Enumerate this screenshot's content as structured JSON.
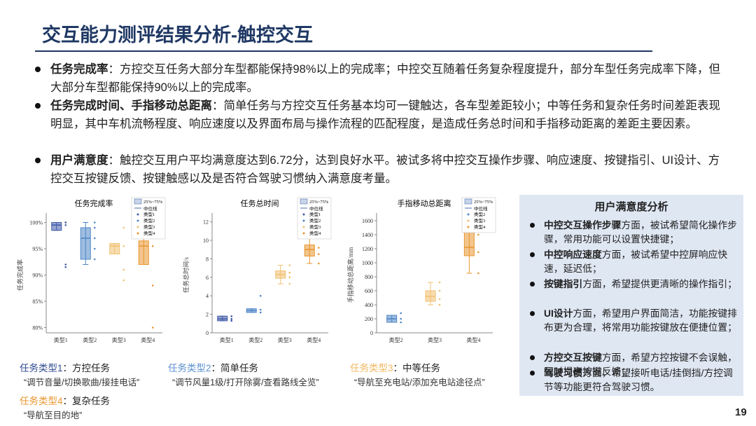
{
  "title": "交互能力测评结果分析-触控交互",
  "bullets": [
    {
      "lead": "任务完成率",
      "text": "：方控交互任务大部分车型都能保持98%以上的完成率；中控交互随着任务复杂程度提升，部分车型任务完成率下降，但大部分车型都能保持90%以上的完成率。"
    },
    {
      "lead": "任务完成时间、手指移动总距离",
      "text": "：简单任务与方控交互任务基本均可一键触达，各车型差距较小；中等任务和复杂任务时间差距表现明显，其中车机流畅程度、响应速度以及界面布局与操作流程的匹配程度，是造成任务总时间和手指移动距离的差距主要因素。"
    },
    {
      "lead": "用户满意度",
      "text": "：触控交互用户平均满意度达到6.72分，达到良好水平。被试多将中控交互操作步骤、响应速度、按键指引、UI设计、方控交互按键反馈、按键触感以及是否符合驾驶习惯纳入满意度考量。"
    }
  ],
  "chart_data": [
    {
      "type": "box",
      "title": "任务完成率",
      "ylabel": "任务完成率",
      "legend_labels": [
        "25%~75%",
        "中位线"
      ],
      "categories": [
        "类型1",
        "类型2",
        "类型3",
        "类型4"
      ],
      "ylim": [
        79,
        101
      ],
      "yticks": [
        {
          "value": 80,
          "label": "80%"
        },
        {
          "value": 85,
          "label": "85%"
        },
        {
          "value": 90,
          "label": "90%"
        },
        {
          "value": 95,
          "label": "95%"
        },
        {
          "value": 100,
          "label": "100%"
        }
      ],
      "series": [
        {
          "name": "类型1",
          "color": "#3f5aa8",
          "box": [
            98.5,
            98.5,
            99.5,
            100,
            100
          ],
          "points": [
            100,
            100,
            99.5,
            92,
            91.5
          ]
        },
        {
          "name": "类型2",
          "color": "#4f86c6",
          "box": [
            92,
            93,
            97,
            99,
            100
          ],
          "points": [
            100,
            99,
            97,
            95,
            93
          ]
        },
        {
          "name": "类型3",
          "color": "#f0c070",
          "box": [
            94,
            94,
            95.5,
            96,
            96
          ],
          "points": [
            99,
            95.5,
            91,
            89
          ]
        },
        {
          "name": "类型4",
          "color": "#e8962f",
          "box": [
            92,
            92,
            95.5,
            96.5,
            100
          ],
          "points": [
            100,
            95.5,
            88,
            80
          ]
        }
      ]
    },
    {
      "type": "box",
      "title": "任务总时间",
      "ylabel": "任务总时间/s",
      "legend_labels": [
        "25%~75%",
        "中位线"
      ],
      "categories": [
        "类型1",
        "类型2",
        "类型3",
        "类型4"
      ],
      "ylim": [
        0,
        12.5
      ],
      "yticks": [
        0,
        2,
        4,
        6,
        8,
        10,
        12
      ],
      "series": [
        {
          "name": "类型1",
          "color": "#3f5aa8",
          "box": [
            1.3,
            1.3,
            1.5,
            1.8,
            1.8
          ],
          "points": [
            1.8,
            1.5,
            1.3
          ]
        },
        {
          "name": "类型2",
          "color": "#4f86c6",
          "box": [
            2.2,
            2.2,
            2.4,
            2.6,
            2.6
          ],
          "points": [
            4,
            2.5,
            2.2
          ]
        },
        {
          "name": "类型3",
          "color": "#f0c070",
          "box": [
            5.3,
            5.9,
            6.3,
            6.7,
            7.3
          ],
          "points": [
            7.3,
            6.5,
            6,
            5.3
          ]
        },
        {
          "name": "类型4",
          "color": "#e8962f",
          "box": [
            7.5,
            8.3,
            9,
            9.5,
            10.3
          ],
          "points": [
            10.3,
            9.2,
            8.5,
            7.5
          ]
        }
      ]
    },
    {
      "type": "box",
      "title": "手指移动总距离",
      "ylabel": "手指移动总距离/mm",
      "legend_labels": [
        "25%~75%",
        "中位线"
      ],
      "categories": [
        "类型2",
        "类型3",
        "类型4"
      ],
      "ylim": [
        0,
        1650
      ],
      "yticks": [
        0,
        200,
        400,
        600,
        800,
        1000,
        1200,
        1400,
        1600
      ],
      "series": [
        {
          "name": "类型2",
          "color": "#4f86c6",
          "box": [
            150,
            150,
            200,
            250,
            250
          ],
          "points": [
            280,
            200,
            150
          ]
        },
        {
          "name": "类型3",
          "color": "#f0c070",
          "box": [
            400,
            450,
            520,
            600,
            720
          ],
          "points": [
            720,
            600,
            480,
            400
          ]
        },
        {
          "name": "类型4",
          "color": "#e8962f",
          "box": [
            850,
            1100,
            1220,
            1450,
            1550
          ],
          "points": [
            1550,
            1400,
            1150,
            850
          ]
        }
      ]
    }
  ],
  "sidebar": {
    "title": "用户满意度分析",
    "items": [
      {
        "lead": "中控交互操作步骤",
        "text": "方面，被试希望简化操作步骤，常用功能可以设置快捷键；"
      },
      {
        "lead": "中控响应速度",
        "text": "方面，被试希望中控屏响应快速，延迟低；"
      },
      {
        "lead": "按键指引",
        "text": "方面，希望提供更清晰的操作指引；"
      },
      {
        "lead": "UI设计",
        "text": "方面，希望用户界面简洁，功能按键排布更为合理，将常用功能按键放在便捷位置；"
      },
      {
        "lead": "方控交互按键",
        "text": "方面，希望方控按键不会误触，同时提高按键反馈；"
      },
      {
        "lead": "驾驶习惯",
        "text": "方面，希望接听电话/挂倒挡/方控调节等功能更符合驾驶习惯。"
      }
    ]
  },
  "task_types": [
    {
      "label": "任务类型1",
      "text": "：方控任务",
      "example": "“调节音量/切换歌曲/接挂电话”",
      "color": "#2e4a8f"
    },
    {
      "label": "任务类型2",
      "text": "：简单任务",
      "example": "“调节风量1级/打开除雾/查看路线全览”",
      "color": "#5b8fd0"
    },
    {
      "label": "任务类型3",
      "text": "：中等任务",
      "example": "“导航至充电站/添加充电站途径点”",
      "color": "#f0b860"
    },
    {
      "label": "任务类型4",
      "text": "：复杂任务",
      "example": "“导航至目的地”",
      "color": "#e8962f"
    }
  ],
  "page_number": "19"
}
